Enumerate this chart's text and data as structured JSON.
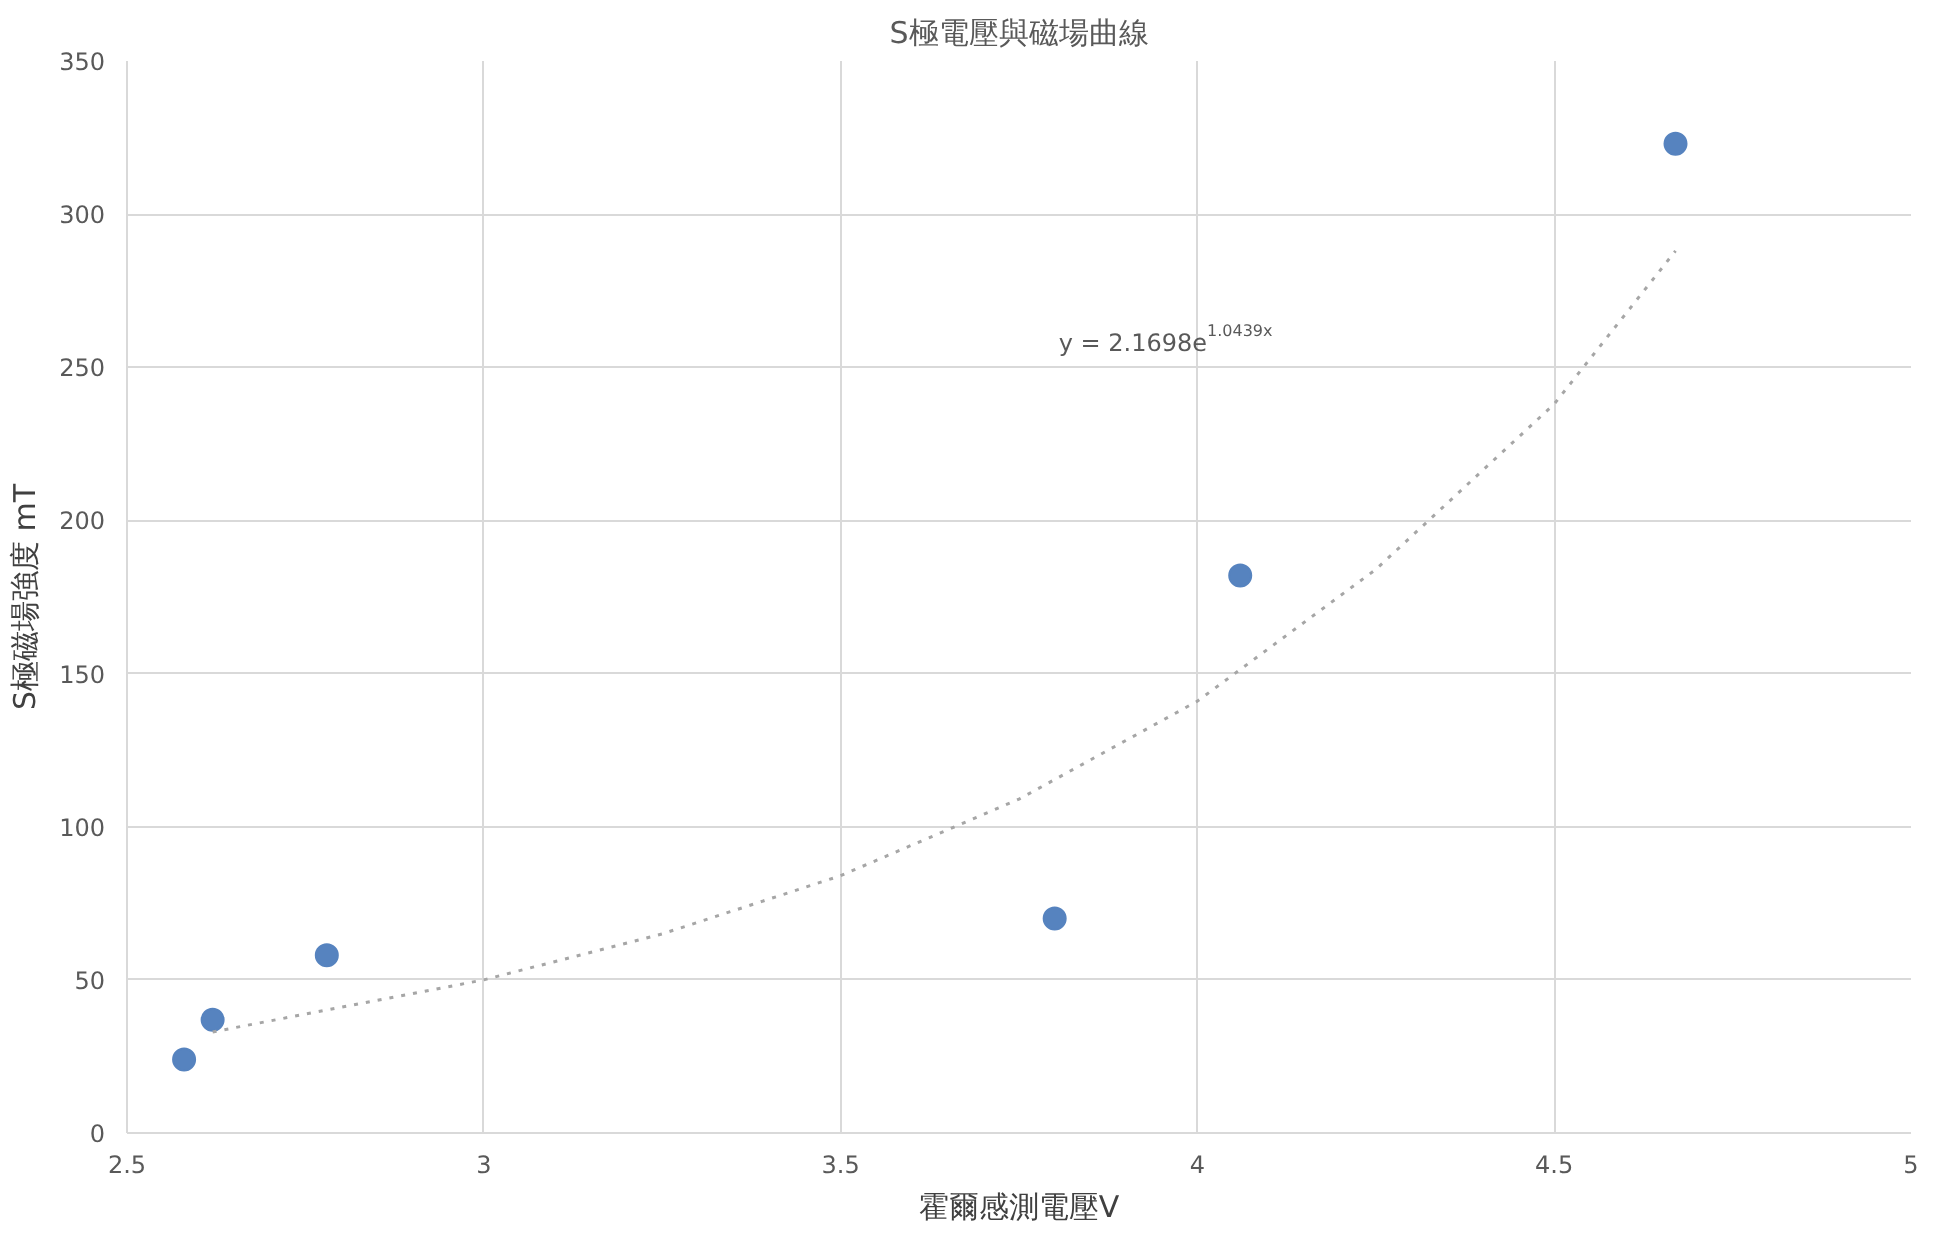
{
  "chart_data": {
    "type": "scatter",
    "title": "S極電壓與磁場曲線",
    "xlabel": "霍爾感測電壓V",
    "ylabel": "S極磁場強度 mT",
    "xlim": [
      2.5,
      5
    ],
    "xticks": [
      2.5,
      3,
      3.5,
      4,
      4.5,
      5
    ],
    "ylim": [
      0,
      350
    ],
    "yticks": [
      0,
      50,
      100,
      150,
      200,
      250,
      300,
      350
    ],
    "grid": true,
    "series": [
      {
        "marker": "circle",
        "color": "#5683bf",
        "x": [
          2.58,
          2.62,
          2.78,
          3.8,
          4.06,
          4.67
        ],
        "values": [
          24,
          37,
          58,
          70,
          182,
          323
        ]
      },
      {
        "type": "line",
        "marker": "none",
        "color": "#a6a6a6",
        "line_style": "dotted",
        "x": [
          2.62,
          3,
          3.25,
          3.5,
          3.75,
          4,
          4.25,
          4.5,
          4.67
        ],
        "values": [
          33,
          50,
          65,
          84,
          109,
          141,
          184,
          238,
          288
        ]
      }
    ],
    "annotations": [
      "y = 2.1698e$^{1.0439x}$"
    ]
  }
}
